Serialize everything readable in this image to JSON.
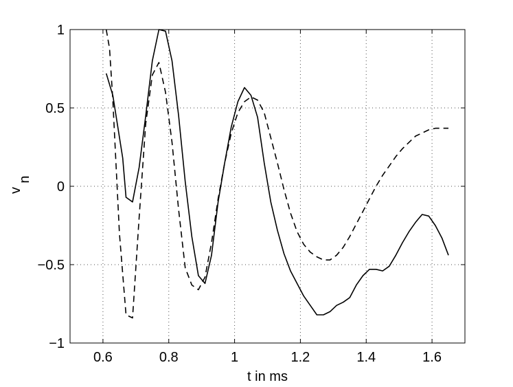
{
  "chart_data": {
    "type": "line",
    "title": "",
    "xlabel": "t in ms",
    "ylabel_main": "v",
    "ylabel_sub": "n",
    "xlim": [
      0.5,
      1.7
    ],
    "ylim": [
      -1,
      1
    ],
    "xticks": [
      0.6,
      0.8,
      1.0,
      1.2,
      1.4,
      1.6
    ],
    "xtick_labels": [
      "0.6",
      "0.8",
      "1",
      "1.2",
      "1.4",
      "1.6"
    ],
    "yticks": [
      1,
      0.5,
      0,
      -0.5,
      -1
    ],
    "ytick_labels": [
      "1",
      "0.5",
      "0",
      "−0.5",
      "−1"
    ],
    "grid": true,
    "series": [
      {
        "style": "solid",
        "x": [
          0.61,
          0.63,
          0.66,
          0.67,
          0.69,
          0.71,
          0.73,
          0.75,
          0.77,
          0.79,
          0.81,
          0.83,
          0.85,
          0.87,
          0.89,
          0.91,
          0.93,
          0.95,
          0.97,
          0.99,
          1.01,
          1.03,
          1.05,
          1.07,
          1.09,
          1.11,
          1.13,
          1.15,
          1.17,
          1.19,
          1.21,
          1.23,
          1.25,
          1.27,
          1.29,
          1.31,
          1.33,
          1.35,
          1.37,
          1.39,
          1.41,
          1.43,
          1.45,
          1.47,
          1.49,
          1.51,
          1.53,
          1.55,
          1.57,
          1.59,
          1.61,
          1.63,
          1.65
        ],
        "y": [
          0.72,
          0.58,
          0.18,
          -0.07,
          -0.1,
          0.12,
          0.45,
          0.8,
          1.0,
          0.99,
          0.8,
          0.45,
          0.03,
          -0.32,
          -0.57,
          -0.62,
          -0.44,
          -0.1,
          0.15,
          0.38,
          0.54,
          0.63,
          0.58,
          0.44,
          0.15,
          -0.1,
          -0.28,
          -0.43,
          -0.54,
          -0.62,
          -0.7,
          -0.76,
          -0.82,
          -0.82,
          -0.8,
          -0.76,
          -0.74,
          -0.71,
          -0.63,
          -0.57,
          -0.53,
          -0.53,
          -0.54,
          -0.51,
          -0.44,
          -0.36,
          -0.29,
          -0.23,
          -0.18,
          -0.19,
          -0.25,
          -0.33,
          -0.44
        ]
      },
      {
        "style": "dashed",
        "x": [
          0.61,
          0.62,
          0.63,
          0.65,
          0.67,
          0.69,
          0.71,
          0.73,
          0.75,
          0.77,
          0.79,
          0.81,
          0.83,
          0.85,
          0.87,
          0.89,
          0.91,
          0.93,
          0.95,
          0.97,
          0.99,
          1.01,
          1.03,
          1.05,
          1.07,
          1.09,
          1.11,
          1.13,
          1.15,
          1.17,
          1.19,
          1.21,
          1.23,
          1.25,
          1.27,
          1.29,
          1.31,
          1.33,
          1.35,
          1.37,
          1.39,
          1.41,
          1.43,
          1.45,
          1.47,
          1.49,
          1.51,
          1.53,
          1.55,
          1.57,
          1.59,
          1.61,
          1.63,
          1.65
        ],
        "y": [
          1.0,
          0.88,
          0.55,
          -0.3,
          -0.82,
          -0.84,
          -0.2,
          0.4,
          0.71,
          0.79,
          0.6,
          0.28,
          -0.15,
          -0.52,
          -0.63,
          -0.66,
          -0.58,
          -0.36,
          -0.08,
          0.15,
          0.34,
          0.47,
          0.54,
          0.57,
          0.55,
          0.47,
          0.31,
          0.15,
          -0.02,
          -0.17,
          -0.29,
          -0.37,
          -0.42,
          -0.45,
          -0.47,
          -0.47,
          -0.44,
          -0.39,
          -0.32,
          -0.24,
          -0.16,
          -0.08,
          0.0,
          0.07,
          0.13,
          0.19,
          0.24,
          0.28,
          0.32,
          0.34,
          0.36,
          0.37,
          0.37,
          0.37
        ]
      }
    ]
  }
}
